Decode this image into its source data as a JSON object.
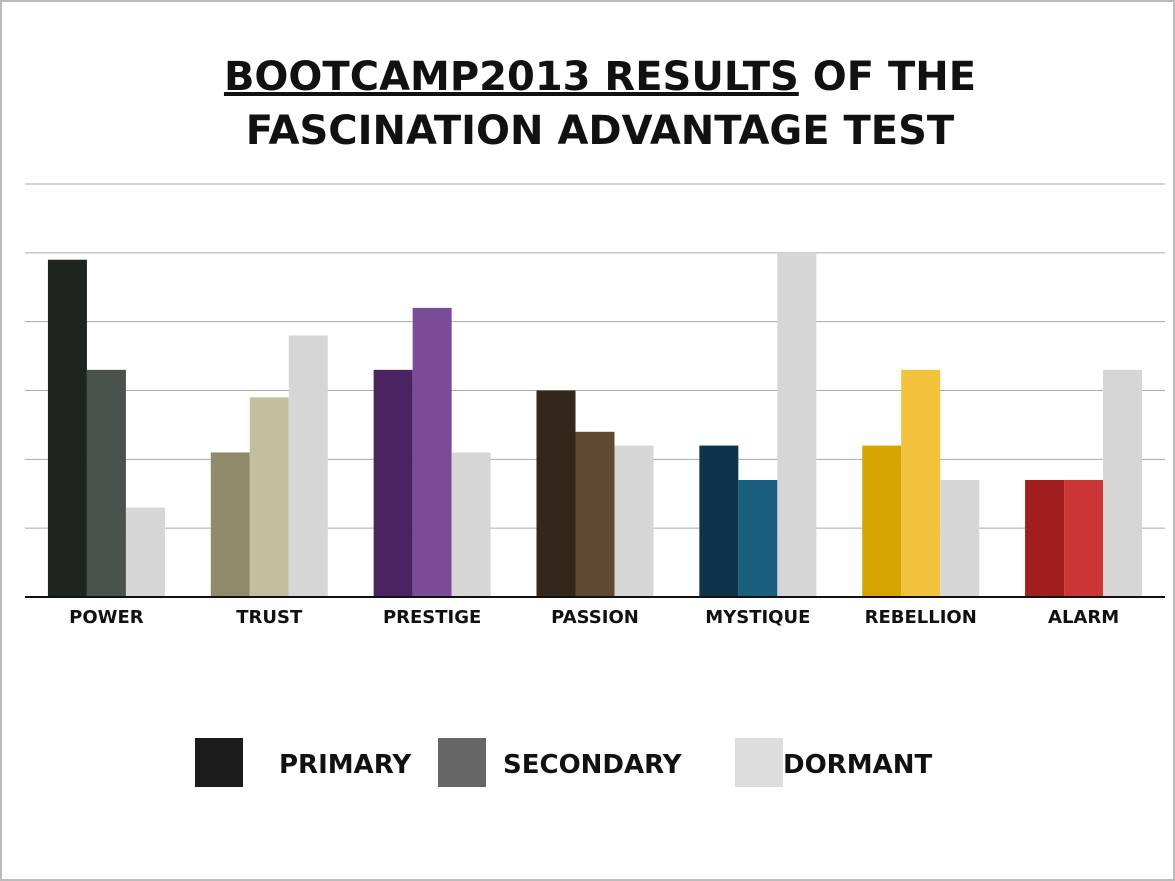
{
  "chart_data": {
    "type": "bar",
    "title": {
      "underlined": "BOOTCAMP2013 RESULTS",
      "rest": " OF THE",
      "line2": "FASCINATION ADVANTAGE TEST"
    },
    "categories": [
      "POWER",
      "TRUST",
      "PRESTIGE",
      "PASSION",
      "MYSTIQUE",
      "REBELLION",
      "ALARM"
    ],
    "series": [
      {
        "name": "PRIMARY",
        "color": "#1c1c1c",
        "colors": [
          "#1e2420",
          "#8f8a6c",
          "#4b2363",
          "#33261a",
          "#0e344a",
          "#d6a502",
          "#a11e1e"
        ],
        "values": [
          4.9,
          2.1,
          3.3,
          3.0,
          2.2,
          2.2,
          1.7
        ]
      },
      {
        "name": "SECONDARY",
        "color": "#666666",
        "colors": [
          "#4a524d",
          "#c4bea0",
          "#7a4b96",
          "#5e4a32",
          "#1a607e",
          "#f2c23c",
          "#cc3636"
        ],
        "values": [
          3.3,
          2.9,
          4.2,
          2.4,
          1.7,
          3.3,
          1.7
        ]
      },
      {
        "name": "DORMANT",
        "color": "#dddddd",
        "colors": [
          "#d6d6d6",
          "#d6d6d6",
          "#d6d6d6",
          "#d6d6d6",
          "#d6d6d6",
          "#d6d6d6",
          "#d6d6d6"
        ],
        "values": [
          1.3,
          3.8,
          2.1,
          2.2,
          5.0,
          1.7,
          3.3
        ]
      }
    ],
    "ylim": [
      0,
      6
    ],
    "yticks": [
      0,
      1,
      2,
      3,
      4,
      5,
      6
    ],
    "grid": true
  }
}
